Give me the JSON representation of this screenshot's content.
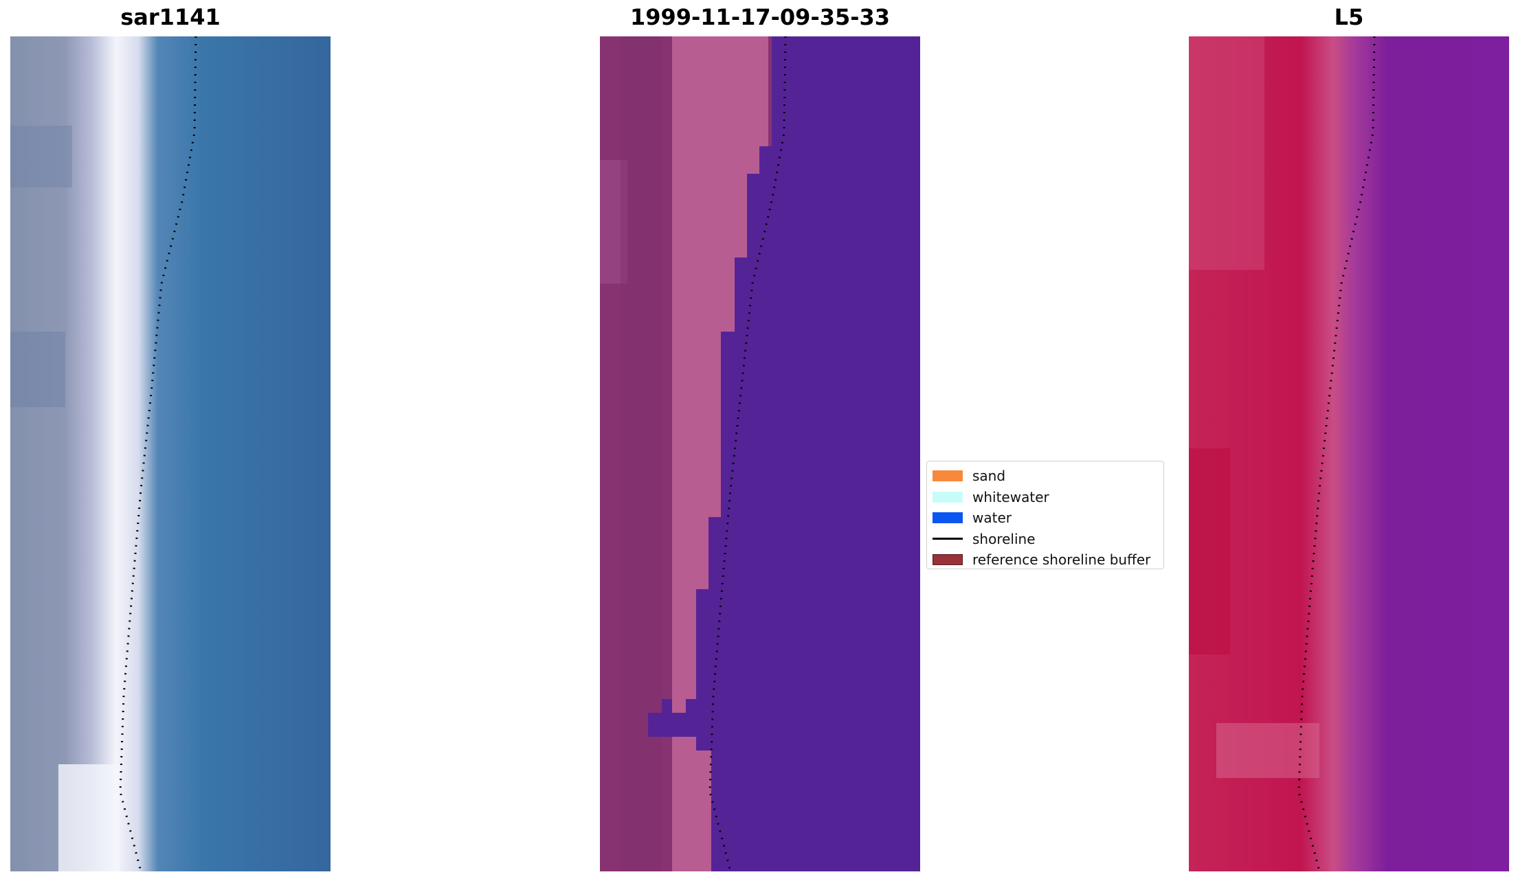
{
  "panels": [
    {
      "title": "sar1141",
      "icon": "rgb-satellite-image"
    },
    {
      "title": "1999-11-17-09-35-33",
      "icon": "classified-image"
    },
    {
      "title": "L5",
      "icon": "false-color-image"
    }
  ],
  "legend": {
    "items": [
      {
        "label": "sand",
        "color": "#f8883a",
        "type": "patch"
      },
      {
        "label": "whitewater",
        "color": "#c8fcf9",
        "type": "patch"
      },
      {
        "label": "water",
        "color": "#0b56f0",
        "type": "patch"
      },
      {
        "label": "shoreline",
        "color": "#000000",
        "type": "line"
      },
      {
        "label": "reference shoreline buffer",
        "color": "#98313a",
        "type": "patch"
      }
    ]
  }
}
